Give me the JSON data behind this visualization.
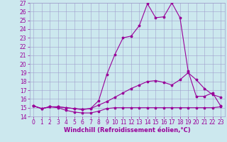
{
  "xlabel": "Windchill (Refroidissement éolien,°C)",
  "bg_color": "#cce8ee",
  "grid_color": "#a0a0cc",
  "line_color": "#990099",
  "xlim": [
    -0.5,
    23.5
  ],
  "ylim": [
    14,
    27
  ],
  "xticks": [
    0,
    1,
    2,
    3,
    4,
    5,
    6,
    7,
    8,
    9,
    10,
    11,
    12,
    13,
    14,
    15,
    16,
    17,
    18,
    19,
    20,
    21,
    22,
    23
  ],
  "yticks": [
    14,
    15,
    16,
    17,
    18,
    19,
    20,
    21,
    22,
    23,
    24,
    25,
    26,
    27
  ],
  "line1_x": [
    0,
    1,
    2,
    3,
    4,
    5,
    6,
    7,
    8,
    9,
    10,
    11,
    12,
    13,
    14,
    15,
    16,
    17,
    18,
    19,
    20,
    21,
    22,
    23
  ],
  "line1_y": [
    15.2,
    14.9,
    15.1,
    15.0,
    14.7,
    14.5,
    14.4,
    14.4,
    14.6,
    14.9,
    15.0,
    15.0,
    15.0,
    15.0,
    15.0,
    15.0,
    15.0,
    15.0,
    15.0,
    15.0,
    15.0,
    15.0,
    15.0,
    15.1
  ],
  "line2_x": [
    0,
    1,
    2,
    3,
    4,
    5,
    6,
    7,
    8,
    9,
    10,
    11,
    12,
    13,
    14,
    15,
    16,
    17,
    18,
    19,
    20,
    21,
    22,
    23
  ],
  "line2_y": [
    15.2,
    14.9,
    15.1,
    15.1,
    15.0,
    14.9,
    14.8,
    14.9,
    15.3,
    15.7,
    16.2,
    16.7,
    17.2,
    17.6,
    18.0,
    18.1,
    17.9,
    17.6,
    18.2,
    19.0,
    18.2,
    17.2,
    16.5,
    16.2
  ],
  "line3_x": [
    0,
    1,
    2,
    3,
    4,
    5,
    6,
    7,
    8,
    9,
    10,
    11,
    12,
    13,
    14,
    15,
    16,
    17,
    18,
    19,
    20,
    21,
    22,
    23
  ],
  "line3_y": [
    15.2,
    14.9,
    15.1,
    15.1,
    15.0,
    14.9,
    14.8,
    14.9,
    15.8,
    18.8,
    21.1,
    23.0,
    23.2,
    24.4,
    26.9,
    25.3,
    25.4,
    27.0,
    25.3,
    19.2,
    16.3,
    16.3,
    16.7,
    15.2
  ],
  "tick_fontsize": 5.5,
  "xlabel_fontsize": 6,
  "linewidth": 0.8,
  "markersize": 2.5
}
